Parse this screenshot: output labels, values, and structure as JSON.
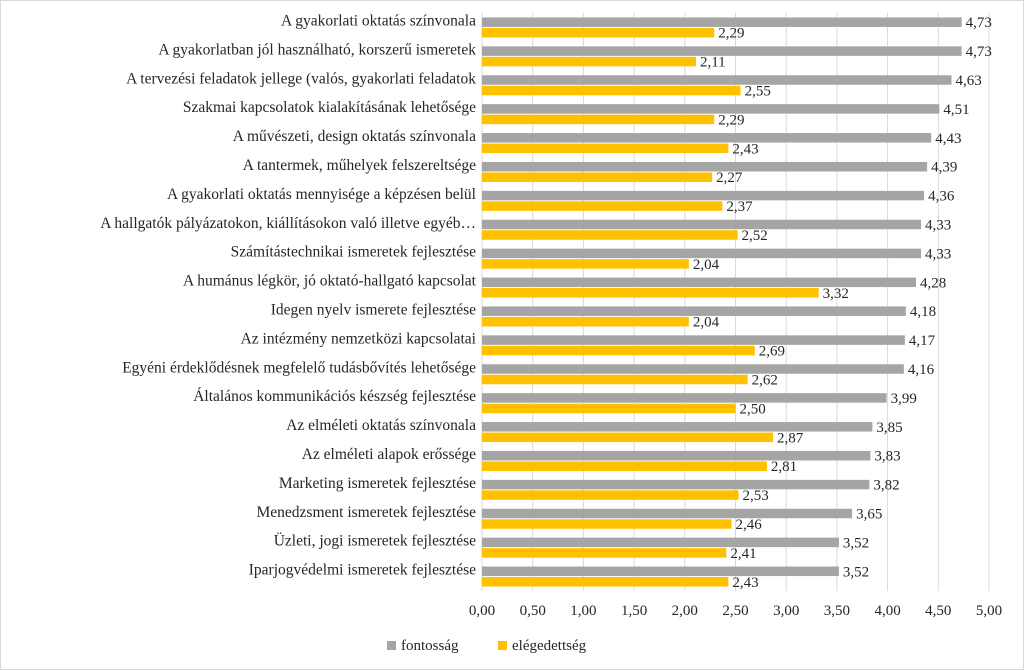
{
  "chart_data": {
    "type": "bar",
    "orientation": "horizontal",
    "categories": [
      "A gyakorlati oktatás színvonala",
      "A gyakorlatban jól használható, korszerű ismeretek",
      "A tervezési feladatok jellege (valós, gyakorlati feladatok",
      "Szakmai kapcsolatok kialakításának lehetősége",
      "A művészeti, design oktatás színvonala",
      "A tantermek, műhelyek felszereltsége",
      "A gyakorlati oktatás mennyisége a képzésen belül",
      "A hallgatók pályázatokon, kiállításokon való illetve egyéb…",
      "Számítástechnikai ismeretek fejlesztése",
      "A humánus légkör, jó oktató-hallgató kapcsolat",
      "Idegen nyelv ismerete fejlesztése",
      "Az intézmény nemzetközi kapcsolatai",
      "Egyéni érdeklődésnek megfelelő tudásbővítés lehetősége",
      "Általános kommunikációs készség fejlesztése",
      "Az elméleti oktatás színvonala",
      "Az elméleti alapok erőssége",
      "Marketing ismeretek fejlesztése",
      "Menedzsment ismeretek fejlesztése",
      "Üzleti, jogi ismeretek fejlesztése",
      "Iparjogvédelmi ismeretek fejlesztése"
    ],
    "series": [
      {
        "name": "fontosság",
        "color": "#a5a5a5",
        "values": [
          4.73,
          4.73,
          4.63,
          4.51,
          4.43,
          4.39,
          4.36,
          4.33,
          4.33,
          4.28,
          4.18,
          4.17,
          4.16,
          3.99,
          3.85,
          3.83,
          3.82,
          3.65,
          3.52,
          3.52
        ],
        "labels": [
          "4,73",
          "4,73",
          "4,63",
          "4,51",
          "4,43",
          "4,39",
          "4,36",
          "4,33",
          "4,33",
          "4,28",
          "4,18",
          "4,17",
          "4,16",
          "3,99",
          "3,85",
          "3,83",
          "3,82",
          "3,65",
          "3,52",
          "3,52"
        ]
      },
      {
        "name": "elégedettség",
        "color": "#ffc000",
        "values": [
          2.29,
          2.11,
          2.55,
          2.29,
          2.43,
          2.27,
          2.37,
          2.52,
          2.04,
          3.32,
          2.04,
          2.69,
          2.62,
          2.5,
          2.87,
          2.81,
          2.53,
          2.46,
          2.41,
          2.43
        ],
        "labels": [
          "2,29",
          "2,11",
          "2,55",
          "2,29",
          "2,43",
          "2,27",
          "2,37",
          "2,52",
          "2,04",
          "3,32",
          "2,04",
          "2,69",
          "2,62",
          "2,50",
          "2,87",
          "2,81",
          "2,53",
          "2,46",
          "2,41",
          "2,43"
        ]
      }
    ],
    "xlim": [
      0,
      5
    ],
    "xticks": [
      0,
      0.5,
      1,
      1.5,
      2,
      2.5,
      3,
      3.5,
      4,
      4.5,
      5
    ],
    "xtick_labels": [
      "0,00",
      "0,50",
      "1,00",
      "1,50",
      "2,00",
      "2,50",
      "3,00",
      "3,50",
      "4,00",
      "4,50",
      "5,00"
    ],
    "grid": true,
    "legend_position": "bottom-left",
    "title": "",
    "xlabel": "",
    "ylabel": ""
  }
}
